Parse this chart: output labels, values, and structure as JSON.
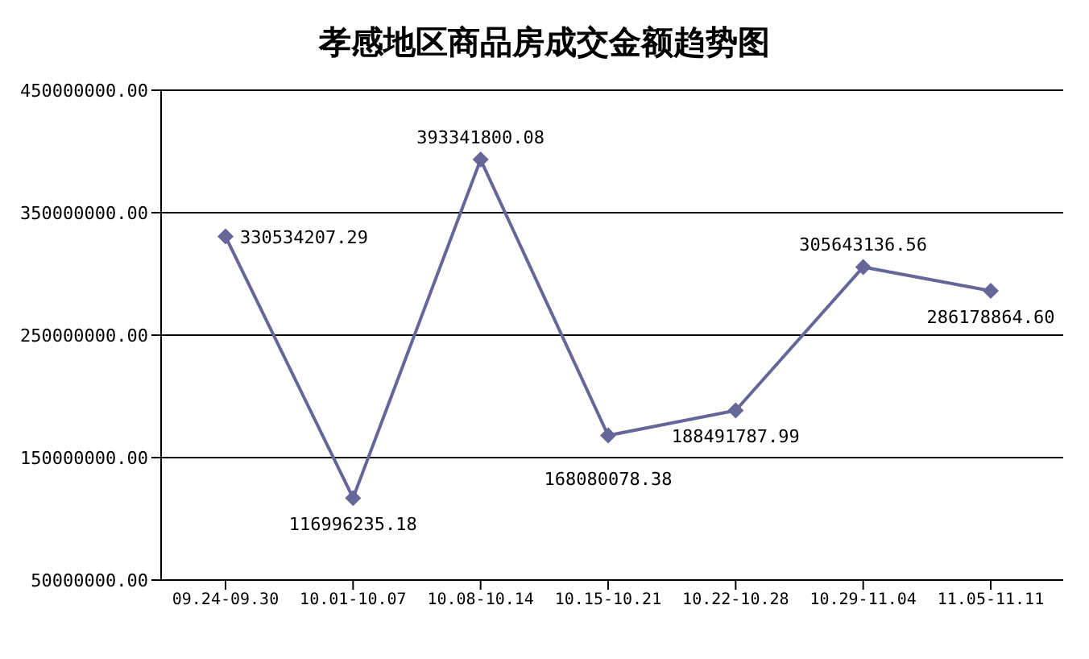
{
  "chart_data": {
    "type": "line",
    "title": "孝感地区商品房成交金额趋势图",
    "categories": [
      "09.24-09.30",
      "10.01-10.07",
      "10.08-10.14",
      "10.15-10.21",
      "10.22-10.28",
      "10.29-11.04",
      "11.05-11.11"
    ],
    "series": [
      {
        "color": "#666699",
        "values": [
          330534207.29,
          116996235.18,
          393341800.08,
          168080078.38,
          188491787.99,
          305643136.56,
          286178864.6
        ],
        "value_labels": [
          "330534207.29",
          "116996235.18",
          "393341800.08",
          "168080078.38",
          "188491787.99",
          "305643136.56",
          "286178864.60"
        ]
      }
    ],
    "ylim": [
      50000000,
      450000000
    ],
    "yticks": [
      {
        "value": 50000000,
        "label": "50000000.00"
      },
      {
        "value": 150000000,
        "label": "150000000.00"
      },
      {
        "value": 250000000,
        "label": "250000000.00"
      },
      {
        "value": 350000000,
        "label": "350000000.00"
      },
      {
        "value": 450000000,
        "label": "450000000.00"
      }
    ],
    "grid": "y",
    "marker": "diamond",
    "legend": false
  }
}
